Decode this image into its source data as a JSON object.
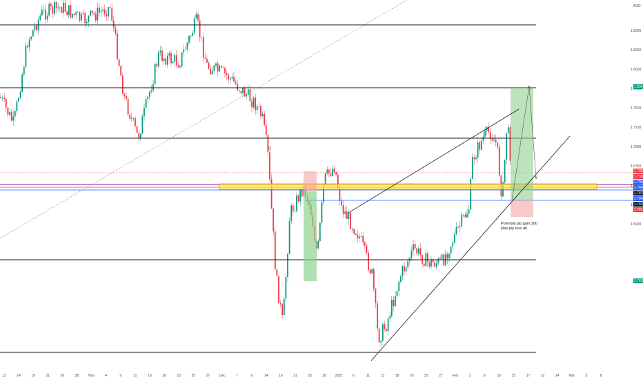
{
  "currency": "AUD",
  "chart_data": {
    "type": "candlestick",
    "title": "",
    "ylim": [
      1.7385,
      1.872
    ],
    "y_ticks": [
      "1.8500",
      "1.8250",
      "1.8000",
      "1.7750",
      "1.7500",
      "1.7250",
      "1.7000",
      "1.6750",
      "1.6500",
      "1.6250",
      "1.6000"
    ],
    "x_ticks": [
      "12",
      "14",
      "19",
      "21",
      "26",
      "28",
      "Nov",
      "4",
      "9",
      "11",
      "16",
      "18",
      "23",
      "25",
      "27",
      "Dec",
      "7",
      "9",
      "14",
      "16",
      "21",
      "23",
      "28",
      "2021",
      "6",
      "11",
      "13",
      "18",
      "20",
      "25",
      "27",
      "Feb",
      "3",
      "8",
      "10",
      "15",
      "17",
      "22",
      "24",
      "Mar",
      "3",
      "8"
    ],
    "horizontal_levels": [
      1.8595,
      1.8345,
      1.808,
      1.784,
      1.7615,
      1.7495,
      1.7245,
      1.6995,
      1.6745,
      1.652,
      1.639
    ],
    "resistance_zone": [
      1.79,
      1.7915
    ],
    "price_labels": [
      {
        "text": "1.7955",
        "color": "#f23645"
      },
      {
        "text": "1.7930",
        "color": "#f23645"
      },
      {
        "text": "1.7905",
        "color": "#2962ff"
      },
      {
        "text": "1.7890",
        "color": "#2962ff"
      },
      {
        "text": "1.7870",
        "color": "#131722"
      },
      {
        "text": "1.7840",
        "color": "#2962ff"
      },
      {
        "text": "1.7820",
        "color": "#131722"
      },
      {
        "text": "1.7810",
        "color": "#f23645"
      },
      {
        "text": "1.8345",
        "color": "#089981"
      },
      {
        "text": "1.7635",
        "color": "#089981"
      }
    ],
    "annotation": [
      "Potential pip gain 300",
      "Max pip loss 40"
    ],
    "marker": "Q",
    "colors": {
      "up": "#089981",
      "down": "#f23645",
      "zone": "#ffeb3b",
      "long_target": "#8fd18f",
      "long_stop": "#f5a5a5"
    }
  }
}
